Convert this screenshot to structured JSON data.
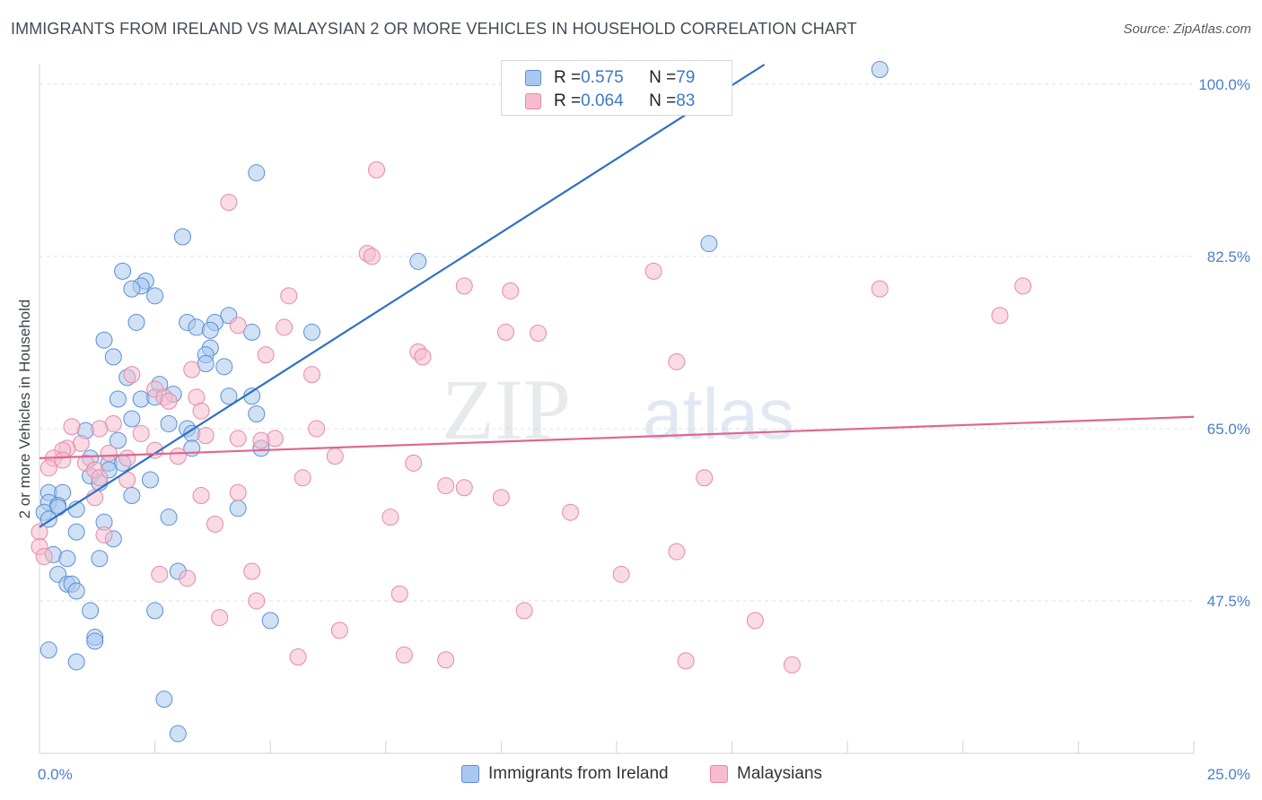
{
  "title": "IMMIGRANTS FROM IRELAND VS MALAYSIAN 2 OR MORE VEHICLES IN HOUSEHOLD CORRELATION CHART",
  "source": "Source: ZipAtlas.com",
  "watermark": {
    "zip": "ZIP",
    "atlas": "atlas"
  },
  "colors": {
    "blue_fill": "#aac8ef",
    "blue_stroke": "#5a8fd4",
    "blue_line": "#2f6fc8",
    "pink_fill": "#f6bccd",
    "pink_stroke": "#e58aa6",
    "pink_line": "#e06690",
    "tick_label": "#4a7fc8",
    "grid": "#dde1e6"
  },
  "legend": {
    "rows": [
      {
        "r_label": "R = ",
        "r_value": "0.575",
        "n_label": "N = ",
        "n_value": "79"
      },
      {
        "r_label": "R = ",
        "r_value": "0.064",
        "n_label": "N = ",
        "n_value": "83"
      }
    ]
  },
  "bottom_legend": [
    "Immigrants from Ireland",
    "Malaysians"
  ],
  "chart_data": {
    "type": "scatter",
    "xlabel": "",
    "ylabel": "2 or more Vehicles in Household",
    "xlim": [
      0,
      25
    ],
    "ylim": [
      32,
      102
    ],
    "x_tick_labels": [
      {
        "value": 0,
        "label": "0.0%"
      },
      {
        "value": 25,
        "label": "25.0%"
      }
    ],
    "y_tick_labels": [
      {
        "value": 100,
        "label": "100.0%"
      },
      {
        "value": 82.5,
        "label": "82.5%"
      },
      {
        "value": 65,
        "label": "65.0%"
      },
      {
        "value": 47.5,
        "label": "47.5%"
      }
    ],
    "x_minor_ticks": [
      2.5,
      5,
      7.5,
      10,
      12.5,
      15,
      17.5,
      20,
      22.5,
      25
    ],
    "grid": true,
    "legend_position": "top-center",
    "series": [
      {
        "name": "Immigrants from Ireland",
        "color": "#aac8ef",
        "trend": {
          "x0": 0,
          "y0": 55.0,
          "x1": 15.7,
          "y1": 102.0
        },
        "points": [
          [
            18.2,
            101.5
          ],
          [
            4.7,
            91.0
          ],
          [
            3.1,
            84.5
          ],
          [
            14.5,
            83.8
          ],
          [
            8.2,
            82.0
          ],
          [
            1.8,
            81.0
          ],
          [
            2.3,
            80.0
          ],
          [
            2.2,
            79.5
          ],
          [
            2.0,
            79.2
          ],
          [
            2.5,
            78.5
          ],
          [
            4.1,
            76.5
          ],
          [
            2.1,
            75.8
          ],
          [
            3.2,
            75.8
          ],
          [
            3.8,
            75.8
          ],
          [
            3.4,
            75.3
          ],
          [
            5.9,
            74.8
          ],
          [
            3.7,
            75.0
          ],
          [
            4.6,
            74.8
          ],
          [
            1.4,
            74.0
          ],
          [
            3.7,
            73.2
          ],
          [
            3.6,
            72.5
          ],
          [
            1.6,
            72.3
          ],
          [
            3.6,
            71.6
          ],
          [
            4.0,
            71.3
          ],
          [
            1.9,
            70.2
          ],
          [
            2.6,
            69.5
          ],
          [
            2.9,
            68.5
          ],
          [
            2.2,
            68.0
          ],
          [
            1.7,
            68.0
          ],
          [
            2.5,
            68.2
          ],
          [
            4.1,
            68.3
          ],
          [
            4.6,
            68.3
          ],
          [
            4.7,
            66.5
          ],
          [
            2.0,
            66.0
          ],
          [
            2.8,
            65.5
          ],
          [
            3.2,
            65.0
          ],
          [
            1.0,
            64.8
          ],
          [
            3.3,
            64.5
          ],
          [
            1.7,
            63.8
          ],
          [
            4.8,
            63.0
          ],
          [
            3.3,
            63.0
          ],
          [
            1.1,
            62.0
          ],
          [
            1.5,
            61.5
          ],
          [
            1.8,
            61.5
          ],
          [
            1.5,
            60.8
          ],
          [
            1.1,
            60.2
          ],
          [
            1.3,
            59.5
          ],
          [
            0.2,
            58.5
          ],
          [
            2.4,
            59.8
          ],
          [
            0.5,
            58.5
          ],
          [
            2.0,
            58.2
          ],
          [
            0.2,
            57.5
          ],
          [
            0.4,
            57.2
          ],
          [
            0.4,
            57.0
          ],
          [
            0.8,
            56.8
          ],
          [
            0.1,
            56.5
          ],
          [
            0.2,
            55.8
          ],
          [
            4.3,
            56.9
          ],
          [
            2.8,
            56.0
          ],
          [
            1.4,
            55.5
          ],
          [
            0.8,
            54.5
          ],
          [
            1.6,
            53.8
          ],
          [
            0.3,
            52.2
          ],
          [
            1.3,
            51.8
          ],
          [
            0.6,
            51.8
          ],
          [
            0.4,
            50.2
          ],
          [
            3.0,
            50.5
          ],
          [
            0.6,
            49.2
          ],
          [
            0.7,
            49.2
          ],
          [
            0.8,
            48.5
          ],
          [
            1.1,
            46.5
          ],
          [
            2.5,
            46.5
          ],
          [
            5.0,
            45.5
          ],
          [
            1.2,
            43.8
          ],
          [
            1.2,
            43.4
          ],
          [
            0.2,
            42.5
          ],
          [
            0.8,
            41.3
          ],
          [
            2.7,
            37.5
          ],
          [
            3.0,
            34.0
          ]
        ]
      },
      {
        "name": "Malaysians",
        "color": "#f6bccd",
        "trend": {
          "x0": 0,
          "y0": 62.0,
          "x1": 25,
          "y1": 66.2
        },
        "points": [
          [
            7.3,
            91.3
          ],
          [
            4.1,
            88.0
          ],
          [
            7.1,
            82.8
          ],
          [
            7.2,
            82.5
          ],
          [
            13.3,
            81.0
          ],
          [
            9.2,
            79.5
          ],
          [
            18.2,
            79.2
          ],
          [
            21.3,
            79.5
          ],
          [
            10.2,
            79.0
          ],
          [
            5.4,
            78.5
          ],
          [
            20.8,
            76.5
          ],
          [
            4.3,
            75.5
          ],
          [
            5.3,
            75.3
          ],
          [
            10.1,
            74.8
          ],
          [
            10.8,
            74.7
          ],
          [
            8.2,
            72.8
          ],
          [
            4.9,
            72.5
          ],
          [
            8.3,
            72.3
          ],
          [
            13.8,
            71.8
          ],
          [
            3.3,
            71.0
          ],
          [
            5.9,
            70.5
          ],
          [
            2.0,
            70.5
          ],
          [
            2.5,
            69.0
          ],
          [
            2.7,
            68.2
          ],
          [
            3.4,
            68.2
          ],
          [
            2.8,
            67.8
          ],
          [
            0.7,
            65.2
          ],
          [
            3.5,
            66.8
          ],
          [
            6.0,
            65.0
          ],
          [
            1.6,
            65.5
          ],
          [
            1.3,
            65.0
          ],
          [
            2.2,
            64.5
          ],
          [
            3.6,
            64.3
          ],
          [
            5.1,
            64.0
          ],
          [
            4.3,
            64.0
          ],
          [
            0.9,
            63.5
          ],
          [
            0.6,
            63.0
          ],
          [
            0.5,
            62.8
          ],
          [
            1.5,
            62.5
          ],
          [
            4.8,
            63.8
          ],
          [
            0.3,
            62.0
          ],
          [
            1.9,
            62.0
          ],
          [
            0.5,
            61.8
          ],
          [
            2.5,
            62.8
          ],
          [
            3.0,
            62.2
          ],
          [
            6.4,
            62.2
          ],
          [
            1.0,
            61.5
          ],
          [
            8.1,
            61.5
          ],
          [
            0.2,
            61.0
          ],
          [
            1.2,
            60.8
          ],
          [
            1.3,
            60.0
          ],
          [
            5.7,
            60.0
          ],
          [
            1.9,
            59.8
          ],
          [
            14.4,
            60.0
          ],
          [
            8.8,
            59.2
          ],
          [
            9.2,
            59.0
          ],
          [
            4.3,
            58.5
          ],
          [
            1.2,
            58.0
          ],
          [
            10.0,
            58.0
          ],
          [
            3.5,
            58.2
          ],
          [
            11.5,
            56.5
          ],
          [
            7.6,
            56.0
          ],
          [
            3.8,
            55.3
          ],
          [
            0.0,
            54.5
          ],
          [
            1.4,
            54.2
          ],
          [
            13.8,
            52.5
          ],
          [
            4.6,
            50.5
          ],
          [
            12.6,
            50.2
          ],
          [
            2.6,
            50.2
          ],
          [
            3.2,
            49.8
          ],
          [
            7.8,
            48.2
          ],
          [
            4.7,
            47.5
          ],
          [
            10.5,
            46.5
          ],
          [
            3.9,
            45.8
          ],
          [
            15.5,
            45.5
          ],
          [
            6.5,
            44.5
          ],
          [
            7.9,
            42.0
          ],
          [
            5.6,
            41.8
          ],
          [
            8.8,
            41.5
          ],
          [
            14.0,
            41.4
          ],
          [
            16.3,
            41.0
          ],
          [
            0.0,
            53.0
          ],
          [
            0.1,
            52.0
          ]
        ]
      }
    ]
  }
}
